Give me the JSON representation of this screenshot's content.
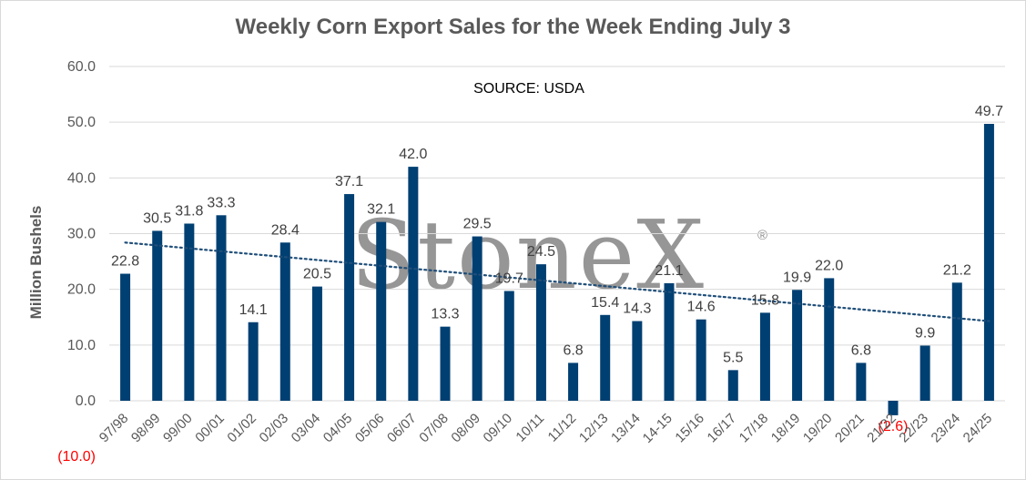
{
  "chart_data": {
    "type": "bar",
    "title": "Weekly Corn Export Sales for the Week Ending July 3",
    "ylabel": "Million Bushels",
    "xlabel": "",
    "annotation": "SOURCE: USDA",
    "watermark": "StoneX",
    "watermark_mark": "®",
    "ylim": [
      -10,
      60
    ],
    "yticks": [
      -10,
      0,
      10,
      20,
      30,
      40,
      50,
      60
    ],
    "ytick_labels": [
      "(10.0)",
      "0.0",
      "10.0",
      "20.0",
      "30.0",
      "40.0",
      "50.0",
      "60.0"
    ],
    "grid": true,
    "legend": "none",
    "categories": [
      "97/98",
      "98/99",
      "99/00",
      "00/01",
      "01/02",
      "02/03",
      "03/04",
      "04/05",
      "05/06",
      "06/07",
      "07/08",
      "08/09",
      "09/10",
      "10/11",
      "11/12",
      "12/13",
      "13/14",
      "14-15",
      "15/16",
      "16/17",
      "17/18",
      "18/19",
      "19/20",
      "20/21",
      "21/22",
      "22/23",
      "23/24",
      "24/25"
    ],
    "values": [
      22.8,
      30.5,
      31.8,
      33.3,
      14.1,
      28.4,
      20.5,
      37.1,
      32.1,
      42.0,
      13.3,
      29.5,
      19.7,
      24.5,
      6.8,
      15.4,
      14.3,
      21.1,
      14.6,
      5.5,
      15.8,
      19.9,
      22.0,
      6.8,
      -2.6,
      9.9,
      21.2,
      49.7
    ],
    "data_labels": [
      "22.8",
      "30.5",
      "31.8",
      "33.3",
      "14.1",
      "28.4",
      "20.5",
      "37.1",
      "32.1",
      "42.0",
      "13.3",
      "29.5",
      "19.7",
      "24.5",
      "6.8",
      "15.4",
      "14.3",
      "21.1",
      "14.6",
      "5.5",
      "15.8",
      "19.9",
      "22.0",
      "6.8",
      "(2.6)",
      "9.9",
      "21.2",
      "49.7"
    ],
    "trendline": {
      "type": "linear",
      "style": "dotted",
      "start_value": 28.4,
      "end_value": 14.3
    },
    "colors": {
      "bar": "#003f72",
      "negative_label": "#ff0000",
      "trendline": "#1f4e79",
      "gridline": "#d9d9d9",
      "text": "#595959"
    }
  }
}
